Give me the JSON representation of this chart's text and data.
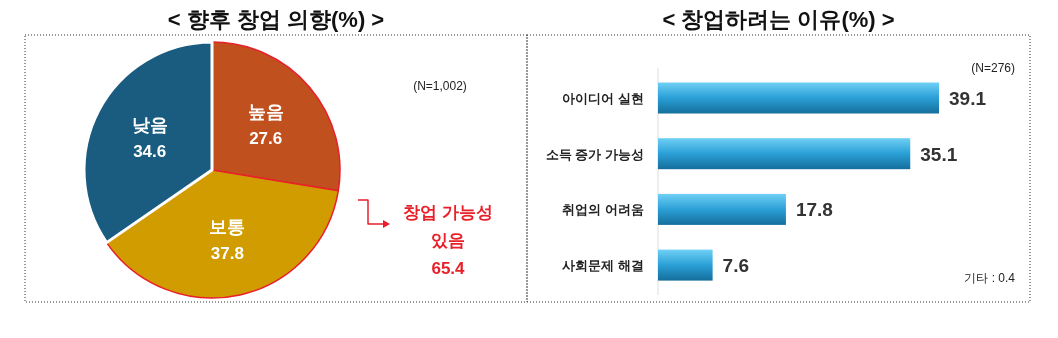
{
  "chart_data": [
    {
      "type": "pie",
      "title": "< 향후 창업 의향(%) >",
      "categories": [
        "높음",
        "보통",
        "낮음"
      ],
      "values": [
        27.6,
        37.8,
        34.6
      ],
      "colors": [
        "#c0501e",
        "#d19c00",
        "#1a5c80"
      ],
      "data_labels": true,
      "annotations": [
        "(N=1,002)",
        "창업 가능성\n있음\n65.4"
      ]
    },
    {
      "type": "bar",
      "orientation": "horizontal",
      "title": "< 창업하려는 이유(%) >",
      "categories": [
        "아이디어 실현",
        "소득 증가 가능성",
        "취업의 어려움",
        "사회문제 해결"
      ],
      "values": [
        39.1,
        35.1,
        17.8,
        7.6
      ],
      "color": "#2a9fd6",
      "data_labels": true,
      "annotations": [
        "(N=276)",
        "기타 : 0.4"
      ]
    }
  ]
}
